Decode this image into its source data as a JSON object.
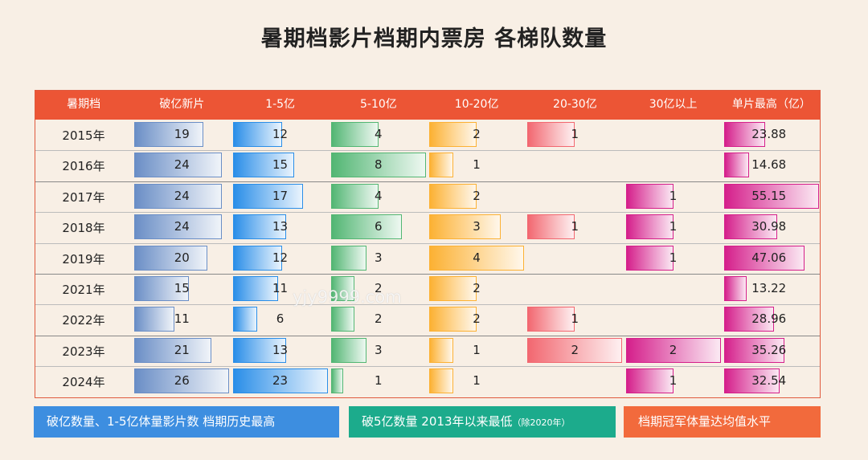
{
  "title": "暑期档影片档期内票房 各梯队数量",
  "watermark": "yjy9999.com",
  "chart_data": {
    "type": "table",
    "columns": [
      {
        "key": "period",
        "label": "暑期档"
      },
      {
        "key": "over_100m",
        "label": "破亿新片",
        "color": "#6a8ec6"
      },
      {
        "key": "r1_5",
        "label": "1-5亿",
        "color": "#2a8ee8"
      },
      {
        "key": "r5_10",
        "label": "5-10亿",
        "color": "#52b673"
      },
      {
        "key": "r10_20",
        "label": "10-20亿",
        "color": "#fcb133"
      },
      {
        "key": "r20_30",
        "label": "20-30亿",
        "color": "#f26770"
      },
      {
        "key": "r30_plus",
        "label": "30亿以上",
        "color": "#d51f8b"
      },
      {
        "key": "top_single",
        "label": "单片最高（亿）",
        "color": "#d51f8b"
      }
    ],
    "rows": [
      {
        "period": "2015年",
        "over_100m": 19,
        "r1_5": 12,
        "r5_10": 4,
        "r10_20": 2,
        "r20_30": 1,
        "r30_plus": null,
        "top_single": 23.88
      },
      {
        "period": "2016年",
        "over_100m": 24,
        "r1_5": 15,
        "r5_10": 8,
        "r10_20": 1,
        "r20_30": null,
        "r30_plus": null,
        "top_single": 14.68
      },
      {
        "period": "2017年",
        "over_100m": 24,
        "r1_5": 17,
        "r5_10": 4,
        "r10_20": 2,
        "r20_30": null,
        "r30_plus": 1,
        "top_single": 55.15
      },
      {
        "period": "2018年",
        "over_100m": 24,
        "r1_5": 13,
        "r5_10": 6,
        "r10_20": 3,
        "r20_30": 1,
        "r30_plus": 1,
        "top_single": 30.98
      },
      {
        "period": "2019年",
        "over_100m": 20,
        "r1_5": 12,
        "r5_10": 3,
        "r10_20": 4,
        "r20_30": null,
        "r30_plus": 1,
        "top_single": 47.06
      },
      {
        "period": "2021年",
        "over_100m": 15,
        "r1_5": 11,
        "r5_10": 2,
        "r10_20": 2,
        "r20_30": null,
        "r30_plus": null,
        "top_single": 13.22
      },
      {
        "period": "2022年",
        "over_100m": 11,
        "r1_5": 6,
        "r5_10": 2,
        "r10_20": 2,
        "r20_30": 1,
        "r30_plus": null,
        "top_single": 28.96
      },
      {
        "period": "2023年",
        "over_100m": 21,
        "r1_5": 13,
        "r5_10": 3,
        "r10_20": 1,
        "r20_30": 2,
        "r30_plus": 2,
        "top_single": 35.26
      },
      {
        "period": "2024年",
        "over_100m": 26,
        "r1_5": 23,
        "r5_10": 1,
        "r10_20": 1,
        "r20_30": null,
        "r30_plus": 1,
        "top_single": 32.54
      }
    ],
    "group_separators_after": [
      "2016年",
      "2019年",
      "2022年"
    ]
  },
  "footer": [
    {
      "text": "破亿数量、1-5亿体量影片数 档期历史最高",
      "note": "",
      "color": "#3d8ee0"
    },
    {
      "text": "破5亿数量 2013年以来最低",
      "note": "（除2020年）",
      "color": "#1cab8c"
    },
    {
      "text": "档期冠军体量达均值水平",
      "note": "",
      "color": "#f26a3c"
    }
  ]
}
